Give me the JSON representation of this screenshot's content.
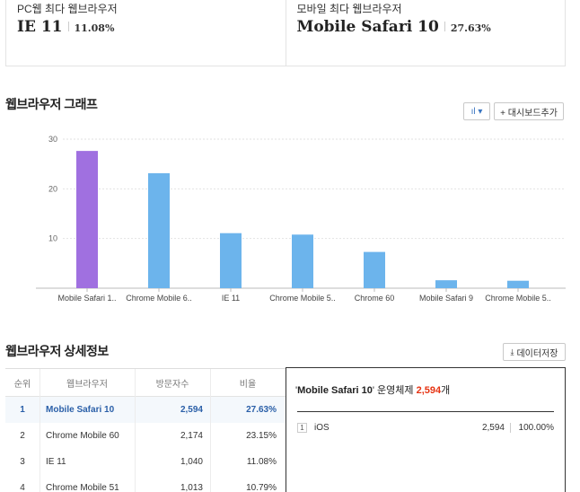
{
  "summary": {
    "pc": {
      "label": "PC웹 최다 웹브라우저",
      "browser": "IE 11",
      "pct": "11.08%"
    },
    "mobile": {
      "label": "모바일 최다 웹브라우저",
      "browser": "Mobile Safari 10",
      "pct": "27.63%"
    }
  },
  "graph_section": {
    "title": "웹브라우저 그래프",
    "chart_type_button": "ıl ▾",
    "dashboard_button": "+ 대시보드추가"
  },
  "chart_data": {
    "type": "bar",
    "categories": [
      "Mobile Safari 1..",
      "Chrome Mobile 6..",
      "IE 11",
      "Chrome Mobile 5..",
      "Chrome 60",
      "Mobile Safari 9",
      "Chrome Mobile 5.."
    ],
    "values": [
      27.63,
      23.15,
      11.08,
      10.79,
      7.3,
      1.6,
      1.5
    ],
    "highlight_index": 0,
    "colors": {
      "highlight": "#a070e0",
      "default": "#6cb4ec"
    },
    "yticks": [
      10,
      20,
      30
    ],
    "ylim": [
      0,
      30
    ],
    "grid": true,
    "title": "",
    "xlabel": "",
    "ylabel": ""
  },
  "detail_section": {
    "title": "웹브라우저 상세정보",
    "download_button": "데이터저장",
    "download_icon": "download-icon"
  },
  "table": {
    "headers": [
      "순위",
      "웹브라우저",
      "방문자수",
      "비율"
    ],
    "rows": [
      {
        "rank": "1",
        "browser": "Mobile Safari 10",
        "visits": "2,594",
        "ratio": "27.63%"
      },
      {
        "rank": "2",
        "browser": "Chrome Mobile 60",
        "visits": "2,174",
        "ratio": "23.15%"
      },
      {
        "rank": "3",
        "browser": "IE 11",
        "visits": "1,040",
        "ratio": "11.08%"
      },
      {
        "rank": "4",
        "browser": "Chrome Mobile 51",
        "visits": "1,013",
        "ratio": "10.79%"
      }
    ]
  },
  "os_detail": {
    "quote_open": "'",
    "browser": "Mobile Safari 10",
    "quote_close": "'",
    "mid_text": " 운영체제 ",
    "count": "2,594",
    "suffix": "개",
    "items": [
      {
        "rank": "1",
        "os": "iOS",
        "count": "2,594",
        "ratio": "100.00%"
      }
    ]
  }
}
